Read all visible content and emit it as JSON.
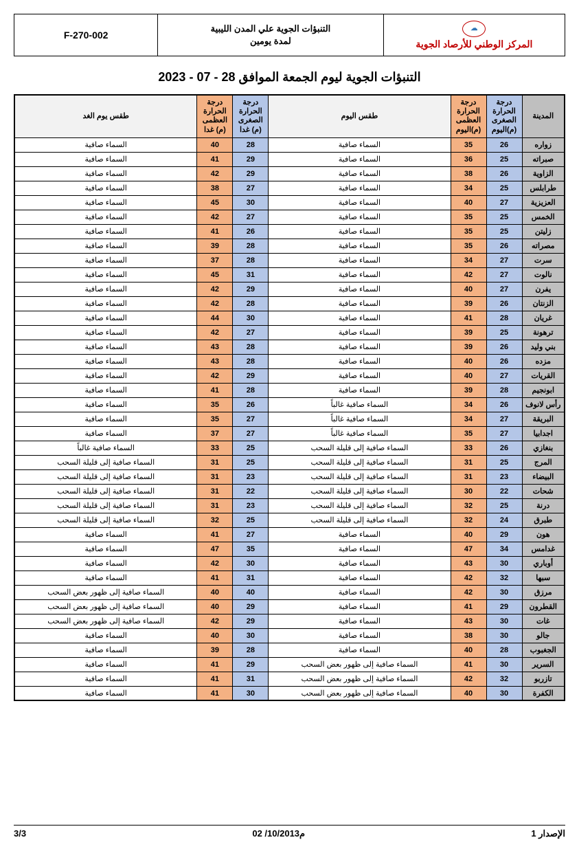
{
  "header": {
    "org_name": "المركز الوطني للأرصاد الجوية",
    "mid_title": "التنبؤات الجوية علي المدن الليبية\nلمدة يومين",
    "code": "F-270-002"
  },
  "main_title": "التنبؤات الجوية ليوم الجمعة الموافق 28 - 07 - 2023",
  "columns": {
    "city": "المدينة",
    "min_today": "درجة الحرارة الصغرى (م)اليوم",
    "max_today": "درجة الحرارة العظمى (م)اليوم",
    "wx_today": "طقس اليوم",
    "min_tom": "درجة الحرارة الصغرى (م) غدا",
    "max_tom": "درجة الحرارة العظمى (م) غدا",
    "wx_tom": "طقس يوم الغد"
  },
  "colors": {
    "city_bg": "#bfbfbf",
    "min_bg": "#b4c6e7",
    "max_bg": "#f4b183",
    "wx_bg": "#ffffff",
    "header_gray": "#f2f2f2",
    "org_text": "#c00000",
    "border": "#000000"
  },
  "rows": [
    {
      "city": "زواره",
      "min_t": 26,
      "max_t": 35,
      "wx_t": "السماء صافية",
      "min_m": 28,
      "max_m": 40,
      "wx_m": "السماء صافية"
    },
    {
      "city": "صبراته",
      "min_t": 25,
      "max_t": 36,
      "wx_t": "السماء صافية",
      "min_m": 29,
      "max_m": 41,
      "wx_m": "السماء صافية"
    },
    {
      "city": "الزاوية",
      "min_t": 26,
      "max_t": 38,
      "wx_t": "السماء صافية",
      "min_m": 29,
      "max_m": 42,
      "wx_m": "السماء صافية"
    },
    {
      "city": "طرابلس",
      "min_t": 25,
      "max_t": 34,
      "wx_t": "السماء صافية",
      "min_m": 27,
      "max_m": 38,
      "wx_m": "السماء صافية"
    },
    {
      "city": "العزيزية",
      "min_t": 27,
      "max_t": 40,
      "wx_t": "السماء صافية",
      "min_m": 30,
      "max_m": 45,
      "wx_m": "السماء صافية"
    },
    {
      "city": "الخمس",
      "min_t": 25,
      "max_t": 35,
      "wx_t": "السماء صافية",
      "min_m": 27,
      "max_m": 42,
      "wx_m": "السماء صافية"
    },
    {
      "city": "زليتن",
      "min_t": 25,
      "max_t": 35,
      "wx_t": "السماء صافية",
      "min_m": 26,
      "max_m": 41,
      "wx_m": "السماء صافية"
    },
    {
      "city": "مصراته",
      "min_t": 26,
      "max_t": 35,
      "wx_t": "السماء صافية",
      "min_m": 28,
      "max_m": 39,
      "wx_m": "السماء صافية"
    },
    {
      "city": "سرت",
      "min_t": 27,
      "max_t": 34,
      "wx_t": "السماء صافية",
      "min_m": 28,
      "max_m": 37,
      "wx_m": "السماء صافية"
    },
    {
      "city": "نالوت",
      "min_t": 27,
      "max_t": 42,
      "wx_t": "السماء صافية",
      "min_m": 31,
      "max_m": 45,
      "wx_m": "السماء صافية"
    },
    {
      "city": "يفرن",
      "min_t": 27,
      "max_t": 40,
      "wx_t": "السماء صافية",
      "min_m": 29,
      "max_m": 42,
      "wx_m": "السماء صافية"
    },
    {
      "city": "الزنتان",
      "min_t": 26,
      "max_t": 39,
      "wx_t": "السماء صافية",
      "min_m": 28,
      "max_m": 42,
      "wx_m": "السماء صافية"
    },
    {
      "city": "غريان",
      "min_t": 28,
      "max_t": 41,
      "wx_t": "السماء صافية",
      "min_m": 30,
      "max_m": 44,
      "wx_m": "السماء صافية"
    },
    {
      "city": "ترهونة",
      "min_t": 25,
      "max_t": 39,
      "wx_t": "السماء صافية",
      "min_m": 27,
      "max_m": 42,
      "wx_m": "السماء صافية"
    },
    {
      "city": "بني وليد",
      "min_t": 26,
      "max_t": 39,
      "wx_t": "السماء صافية",
      "min_m": 28,
      "max_m": 43,
      "wx_m": "السماء صافية"
    },
    {
      "city": "مزده",
      "min_t": 26,
      "max_t": 40,
      "wx_t": "السماء صافية",
      "min_m": 28,
      "max_m": 43,
      "wx_m": "السماء صافية"
    },
    {
      "city": "القريات",
      "min_t": 27,
      "max_t": 40,
      "wx_t": "السماء صافية",
      "min_m": 29,
      "max_m": 42,
      "wx_m": "السماء صافية"
    },
    {
      "city": "ابونجيم",
      "min_t": 28,
      "max_t": 39,
      "wx_t": "السماء صافية",
      "min_m": 28,
      "max_m": 41,
      "wx_m": "السماء صافية"
    },
    {
      "city": "رأس لانوف",
      "min_t": 26,
      "max_t": 34,
      "wx_t": "السماء صافية غالباً",
      "min_m": 26,
      "max_m": 35,
      "wx_m": "السماء صافية"
    },
    {
      "city": "البريقة",
      "min_t": 27,
      "max_t": 34,
      "wx_t": "السماء صافية غالباً",
      "min_m": 27,
      "max_m": 35,
      "wx_m": "السماء صافية"
    },
    {
      "city": "اجدابيا",
      "min_t": 27,
      "max_t": 35,
      "wx_t": "السماء صافية غالباً",
      "min_m": 27,
      "max_m": 37,
      "wx_m": "السماء صافية"
    },
    {
      "city": "بنغازي",
      "min_t": 26,
      "max_t": 33,
      "wx_t": "السماء صافية إلى قليلة السحب",
      "min_m": 25,
      "max_m": 33,
      "wx_m": "السماء صافية غالباً"
    },
    {
      "city": "المرج",
      "min_t": 25,
      "max_t": 31,
      "wx_t": "السماء صافية إلى قليلة السحب",
      "min_m": 25,
      "max_m": 31,
      "wx_m": "السماء صافية إلى قليلة السحب"
    },
    {
      "city": "البيضاء",
      "min_t": 23,
      "max_t": 31,
      "wx_t": "السماء صافية إلى قليلة السحب",
      "min_m": 23,
      "max_m": 31,
      "wx_m": "السماء صافية إلى قليلة السحب"
    },
    {
      "city": "شحات",
      "min_t": 22,
      "max_t": 30,
      "wx_t": "السماء صافية إلى قليلة السحب",
      "min_m": 22,
      "max_m": 31,
      "wx_m": "السماء صافية إلى قليلة السحب"
    },
    {
      "city": "درنة",
      "min_t": 25,
      "max_t": 32,
      "wx_t": "السماء صافية إلى قليلة السحب",
      "min_m": 23,
      "max_m": 31,
      "wx_m": "السماء صافية إلى قليلة السحب"
    },
    {
      "city": "طبرق",
      "min_t": 24,
      "max_t": 32,
      "wx_t": "السماء صافية إلى قليلة السحب",
      "min_m": 25,
      "max_m": 32,
      "wx_m": "السماء صافية إلى قليلة السحب"
    },
    {
      "city": "هون",
      "min_t": 29,
      "max_t": 40,
      "wx_t": "السماء صافية",
      "min_m": 27,
      "max_m": 41,
      "wx_m": "السماء صافية"
    },
    {
      "city": "غدامس",
      "min_t": 34,
      "max_t": 47,
      "wx_t": "السماء صافية",
      "min_m": 35,
      "max_m": 47,
      "wx_m": "السماء صافية"
    },
    {
      "city": "أوباري",
      "min_t": 30,
      "max_t": 43,
      "wx_t": "السماء صافية",
      "min_m": 30,
      "max_m": 42,
      "wx_m": "السماء صافية"
    },
    {
      "city": "سبها",
      "min_t": 32,
      "max_t": 42,
      "wx_t": "السماء صافية",
      "min_m": 31,
      "max_m": 41,
      "wx_m": "السماء صافية"
    },
    {
      "city": "مرزق",
      "min_t": 30,
      "max_t": 42,
      "wx_t": "السماء صافية",
      "min_m": 40,
      "max_m": 40,
      "wx_m": "السماء صافية إلى ظهور بعض السحب"
    },
    {
      "city": "القطرون",
      "min_t": 29,
      "max_t": 41,
      "wx_t": "السماء صافية",
      "min_m": 29,
      "max_m": 40,
      "wx_m": "السماء صافية إلى ظهور بعض السحب"
    },
    {
      "city": "غات",
      "min_t": 30,
      "max_t": 43,
      "wx_t": "السماء صافية",
      "min_m": 29,
      "max_m": 42,
      "wx_m": "السماء صافية إلى ظهور بعض السحب"
    },
    {
      "city": "جالو",
      "min_t": 30,
      "max_t": 38,
      "wx_t": "السماء صافية",
      "min_m": 30,
      "max_m": 40,
      "wx_m": "السماء صافية"
    },
    {
      "city": "الجغبوب",
      "min_t": 28,
      "max_t": 40,
      "wx_t": "السماء صافية",
      "min_m": 28,
      "max_m": 39,
      "wx_m": "السماء صافية"
    },
    {
      "city": "السرير",
      "min_t": 30,
      "max_t": 41,
      "wx_t": "السماء صافية إلى ظهور بعض السحب",
      "min_m": 29,
      "max_m": 41,
      "wx_m": "السماء صافية"
    },
    {
      "city": "تازربو",
      "min_t": 32,
      "max_t": 42,
      "wx_t": "السماء صافية إلى ظهور بعض السحب",
      "min_m": 31,
      "max_m": 41,
      "wx_m": "السماء صافية"
    },
    {
      "city": "الكفرة",
      "min_t": 30,
      "max_t": 40,
      "wx_t": "السماء صافية إلى ظهور بعض السحب",
      "min_m": 30,
      "max_m": 41,
      "wx_m": "السماء صافية"
    }
  ],
  "footer": {
    "issue": "الإصدار 1",
    "date": "02 /10/2013م",
    "page": "3/3"
  }
}
